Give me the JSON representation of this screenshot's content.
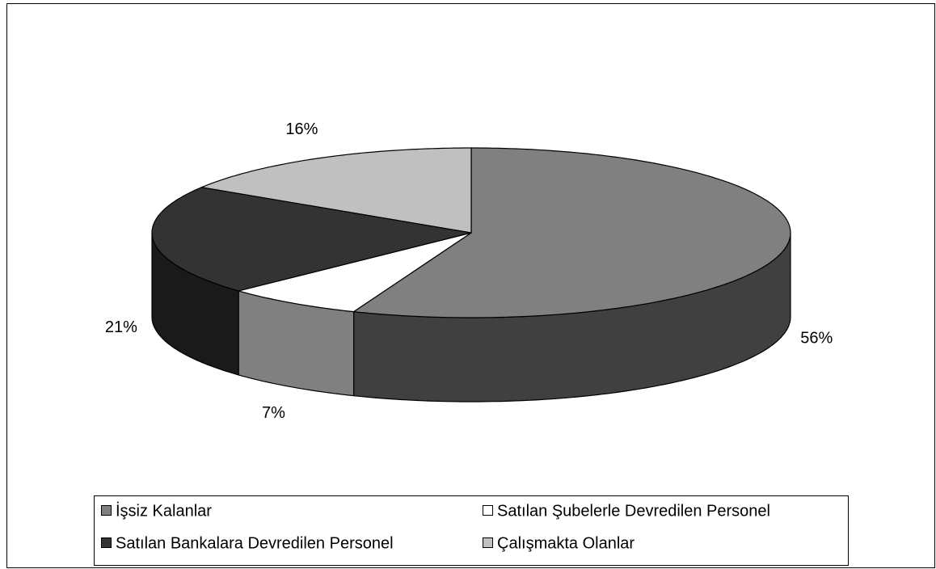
{
  "chart_data": {
    "type": "pie",
    "categories": [
      "İşsiz Kalanlar",
      "Satılan Şubelerle Devredilen Personel",
      "Satılan Bankalara Devredilen Personel",
      "Çalışmakta Olanlar"
    ],
    "values": [
      56,
      7,
      21,
      16
    ],
    "value_labels": [
      "56%",
      "7%",
      "21%",
      "16%"
    ],
    "colors": [
      "#808080",
      "#ffffff",
      "#333333",
      "#c0c0c0"
    ],
    "legend": "bottom"
  }
}
